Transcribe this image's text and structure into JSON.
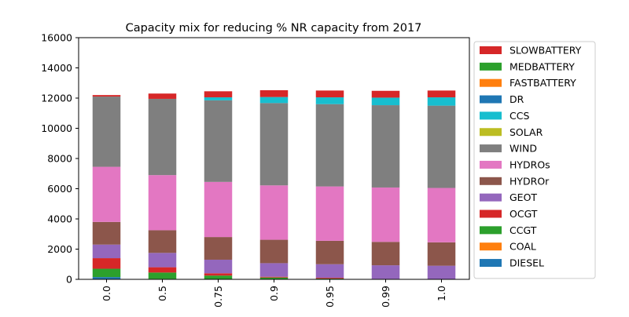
{
  "chart_data": {
    "type": "bar",
    "stacked": true,
    "title": "Capacity mix for reducing % NR capacity from 2017",
    "xlabel": "",
    "ylabel": "",
    "categories": [
      "0.0",
      "0.5",
      "0.75",
      "0.9",
      "0.95",
      "0.99",
      "1.0"
    ],
    "ylim": [
      0,
      16000
    ],
    "yticks": [
      0,
      2000,
      4000,
      6000,
      8000,
      10000,
      12000,
      14000,
      16000
    ],
    "grid": false,
    "legend_position": "right, outside plot",
    "series": [
      {
        "name": "DIESEL",
        "color": "#1f77b4",
        "values": [
          150,
          30,
          0,
          0,
          0,
          0,
          0
        ]
      },
      {
        "name": "COAL",
        "color": "#ff7f0e",
        "values": [
          0,
          0,
          0,
          0,
          0,
          0,
          0
        ]
      },
      {
        "name": "CCGT",
        "color": "#2ca02c",
        "values": [
          550,
          420,
          250,
          120,
          50,
          0,
          0
        ]
      },
      {
        "name": "OCGT",
        "color": "#d62728",
        "values": [
          700,
          350,
          150,
          50,
          50,
          30,
          0
        ]
      },
      {
        "name": "GEOT",
        "color": "#9467bd",
        "values": [
          900,
          950,
          900,
          900,
          900,
          900,
          900
        ]
      },
      {
        "name": "HYDROr",
        "color": "#8c564b",
        "values": [
          1500,
          1500,
          1500,
          1550,
          1550,
          1550,
          1550
        ]
      },
      {
        "name": "HYDROs",
        "color": "#e377c2",
        "values": [
          3650,
          3650,
          3650,
          3600,
          3600,
          3600,
          3600
        ]
      },
      {
        "name": "WIND",
        "color": "#7f7f7f",
        "values": [
          4650,
          5050,
          5400,
          5450,
          5450,
          5450,
          5450
        ]
      },
      {
        "name": "SOLAR",
        "color": "#bcbd22",
        "values": [
          0,
          0,
          0,
          0,
          0,
          0,
          0
        ]
      },
      {
        "name": "CCS",
        "color": "#17becf",
        "values": [
          0,
          0,
          200,
          400,
          450,
          500,
          550
        ]
      },
      {
        "name": "DR",
        "color": "#1f77b4",
        "values": [
          0,
          0,
          0,
          0,
          0,
          0,
          0
        ]
      },
      {
        "name": "FASTBATTERY",
        "color": "#ff7f0e",
        "values": [
          0,
          0,
          0,
          0,
          0,
          0,
          0
        ]
      },
      {
        "name": "MEDBATTERY",
        "color": "#2ca02c",
        "values": [
          0,
          0,
          0,
          0,
          0,
          0,
          0
        ]
      },
      {
        "name": "SLOWBATTERY",
        "color": "#d62728",
        "values": [
          100,
          350,
          400,
          450,
          450,
          450,
          450
        ]
      }
    ]
  }
}
